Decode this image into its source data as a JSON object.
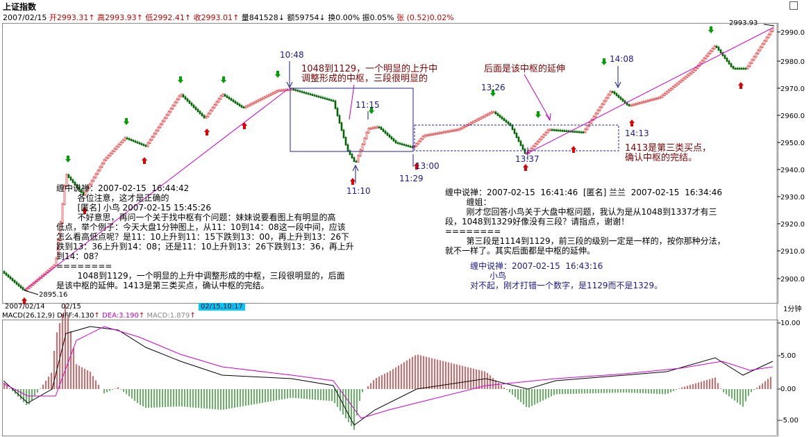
{
  "window": {
    "title": "上证指数"
  },
  "info": {
    "date": "2007/02/15",
    "open_label": "开",
    "open": "2993.31",
    "high_label": "高",
    "high": "2993.93",
    "low_label": "低",
    "low": "2992.41",
    "close_label": "收",
    "close": "2993.01",
    "vol_label": "量",
    "vol": "841528",
    "amt_label": "额",
    "amt": "59754",
    "turn_label": "换",
    "turn": "0.00%",
    "amp_label": "振",
    "amp": "0.05%",
    "chg_label": "张",
    "chg": "(0.52)0.02%"
  },
  "price_axis": {
    "ticks": [
      "2990.0",
      "2980.0",
      "2970.0",
      "2960.0",
      "2950.0",
      "2940.0",
      "2930.0",
      "2920.0",
      "2910.0",
      "2900.0"
    ]
  },
  "markers": {
    "high_price": "2993.93",
    "low_price": "2895.16"
  },
  "time_labels": {
    "t1048": "10:48",
    "t1115": "11:15",
    "t1110": "11:10",
    "t1129": "11:29",
    "t1300": "13:00",
    "t1326": "13:26",
    "t1337": "13:37",
    "t1408": "14:08",
    "t1413": "14:13"
  },
  "annotations": {
    "central": "1048到1129，一个明显的上升中\n调整形成的中枢，三段很明显的",
    "extension": "后面是该中枢的延伸",
    "third_buy": "1413是第三类买点，\n确认中枢的完结。"
  },
  "comment_left": {
    "header": "缠中说禅：2007-02-15  16:44:42",
    "body": "        各位注意，这才是正确的\n        [匿名] 小鸟 2007-02-15 15:45:26\n        不好意思，再问一个关于找中枢有个问题：妹妹说要看图上有明显的高\n低点，举个例子：今天大盘1分钟图上，从11：10到14：08这一段中间，应该\n怎么看高低点呢？是11：10上升到11：15下跌到13：00，再上升到13：26下\n跌到13：36上升到14：08；还是11：10上升到13：26下跌到13：36，再上升\n到14：08？\n========\n        1048到1129，一个明显的上升中调整形成的中枢，三段很明显的，后面\n是该中枢的延伸。1413是第三类买点，确认中枢的完结。"
  },
  "comment_right": {
    "header": "缠中说禅：2007-02-15  16:41:46  [匿名] 兰兰  2007-02-15  16:34:46",
    "body": "        缠姐：\n        刚才您回答小鸟关于大盘中枢问题，我认为是从1048到1337才有三\n段，1048到1329好像没有三段？请指点，谢谢！\n========\n        第三段是1114到1129，前三段的级别一定是一样的，按你那种分法，\n就不一样了。其实后面都是中枢的延伸。",
    "reply_header": "缠中说禅：2007-02-15  16:43:16",
    "reply_to": "小鸟",
    "reply_body": "对不起，刚才打错一个数字，是1129而不是1329。"
  },
  "date_bar": {
    "d1": "2007/02/14",
    "d2": "02/15",
    "cursor": "02/15,10:17",
    "period": "1分钟"
  },
  "macd": {
    "name": "MACD(26,12,9)",
    "diff_label": "DIFF:",
    "diff": "4.130",
    "dea_label": "DEA:",
    "dea": "3.190",
    "macd_label": "MACD:",
    "macd": "1.879",
    "ticks": [
      "10.00",
      "5.00",
      "0.00",
      "-5.00"
    ]
  },
  "colors": {
    "up": "#d00000",
    "down": "#006400",
    "trend": "#d000d0",
    "annotation": "#800000",
    "box": "#2020a0"
  }
}
